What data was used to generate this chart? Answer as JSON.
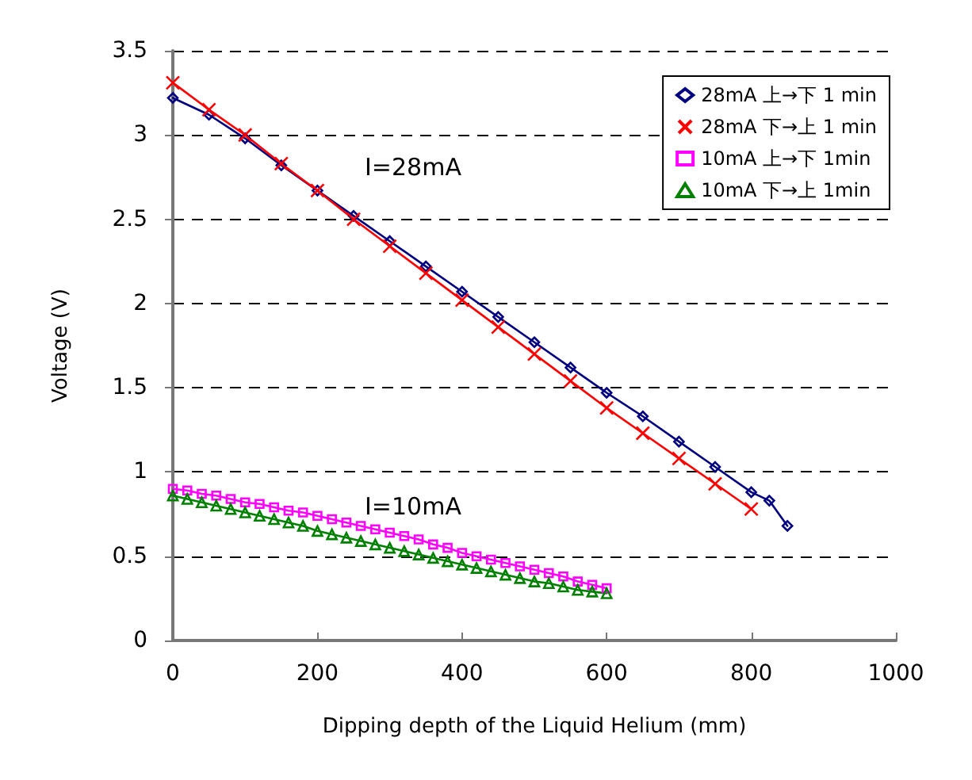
{
  "chart_data": {
    "type": "line",
    "xlabel": "Dipping depth of the Liquid Helium (mm)",
    "ylabel": "Voltage (V)",
    "xlim": [
      0,
      1000
    ],
    "xticks": [
      0,
      200,
      400,
      600,
      800,
      1000
    ],
    "ylim": [
      0,
      3.5
    ],
    "yticks": [
      0,
      0.5,
      1,
      1.5,
      2,
      2.5,
      3,
      3.5
    ],
    "grid": "y",
    "legend": "top right",
    "annotations": [
      "I=28mA",
      "I=10mA"
    ],
    "series": [
      {
        "name": "28mA 上→下 1 min",
        "color": "#000080",
        "marker": "diamond",
        "x": [
          0,
          50,
          100,
          150,
          200,
          250,
          300,
          350,
          400,
          450,
          500,
          550,
          600,
          650,
          700,
          750,
          800,
          825,
          850
        ],
        "values": [
          3.22,
          3.12,
          2.98,
          2.82,
          2.67,
          2.52,
          2.37,
          2.22,
          2.07,
          1.92,
          1.77,
          1.62,
          1.47,
          1.33,
          1.18,
          1.03,
          0.88,
          0.83,
          0.68
        ]
      },
      {
        "name": "28mA 下→上 1 min",
        "color": "#ff0000",
        "marker": "cross",
        "x": [
          0,
          50,
          100,
          150,
          200,
          250,
          300,
          350,
          400,
          450,
          500,
          550,
          600,
          650,
          700,
          750,
          800
        ],
        "values": [
          3.31,
          3.15,
          3.0,
          2.83,
          2.67,
          2.5,
          2.34,
          2.18,
          2.02,
          1.86,
          1.7,
          1.54,
          1.38,
          1.23,
          1.08,
          0.93,
          0.78
        ]
      },
      {
        "name": "10mA 上→下 1min",
        "color": "#ff00ff",
        "marker": "square",
        "x": [
          0,
          20,
          40,
          60,
          80,
          100,
          120,
          140,
          160,
          180,
          200,
          220,
          240,
          260,
          280,
          300,
          320,
          340,
          360,
          380,
          400,
          420,
          440,
          460,
          480,
          500,
          520,
          540,
          560,
          580,
          600
        ],
        "values": [
          0.9,
          0.89,
          0.87,
          0.86,
          0.84,
          0.82,
          0.81,
          0.79,
          0.77,
          0.76,
          0.74,
          0.72,
          0.7,
          0.68,
          0.66,
          0.64,
          0.62,
          0.6,
          0.57,
          0.55,
          0.52,
          0.5,
          0.48,
          0.46,
          0.44,
          0.42,
          0.4,
          0.38,
          0.35,
          0.33,
          0.31
        ]
      },
      {
        "name": "10mA 下→上 1min",
        "color": "#008000",
        "marker": "triangle",
        "x": [
          0,
          20,
          40,
          60,
          80,
          100,
          120,
          140,
          160,
          180,
          200,
          220,
          240,
          260,
          280,
          300,
          320,
          340,
          360,
          380,
          400,
          420,
          440,
          460,
          480,
          500,
          520,
          540,
          560,
          580,
          600
        ],
        "values": [
          0.86,
          0.84,
          0.82,
          0.8,
          0.78,
          0.76,
          0.74,
          0.72,
          0.7,
          0.68,
          0.65,
          0.63,
          0.61,
          0.59,
          0.57,
          0.55,
          0.53,
          0.51,
          0.49,
          0.47,
          0.45,
          0.43,
          0.41,
          0.39,
          0.37,
          0.35,
          0.34,
          0.32,
          0.3,
          0.29,
          0.28
        ]
      }
    ]
  }
}
